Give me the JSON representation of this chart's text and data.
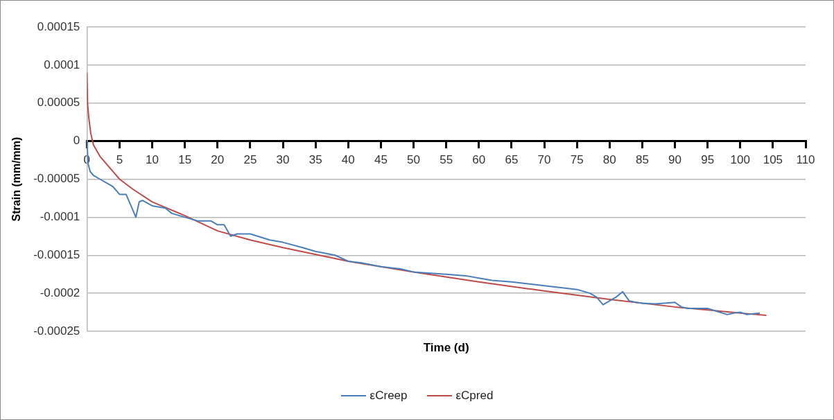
{
  "chart_data": {
    "type": "line",
    "xlabel": "Time (d)",
    "ylabel": "Strain (mm/mm)",
    "xlim": [
      0,
      110
    ],
    "xticks": [
      0,
      5,
      10,
      15,
      20,
      25,
      30,
      35,
      40,
      45,
      50,
      55,
      60,
      65,
      70,
      75,
      80,
      85,
      90,
      95,
      100,
      105,
      110
    ],
    "ylim": [
      -0.00025,
      0.00015
    ],
    "yticks": [
      {
        "value": -0.00025,
        "label": "-0.00025"
      },
      {
        "value": -0.0002,
        "label": "-0.0002"
      },
      {
        "value": -0.00015,
        "label": "-0.00015"
      },
      {
        "value": -0.0001,
        "label": "-0.0001"
      },
      {
        "value": -5e-05,
        "label": "-0.00005"
      },
      0,
      {
        "value": 5e-05,
        "label": "0.00005"
      },
      {
        "value": 0.0001,
        "label": "0.0001"
      },
      {
        "value": 0.00015,
        "label": "0.00015"
      }
    ],
    "grid": "y",
    "legend": "bottom",
    "marker": "none",
    "line_style": "solid",
    "series": [
      {
        "name": "εCreep",
        "color": "#4a7ebb",
        "x": [
          0,
          0.2,
          0.5,
          1,
          2,
          3,
          4,
          5,
          6,
          7,
          7.5,
          8,
          8.5,
          10,
          12,
          13,
          15,
          17,
          19,
          20,
          21,
          22,
          23,
          25,
          28,
          30,
          33,
          35,
          38,
          40,
          42,
          45,
          48,
          50,
          53,
          55,
          58,
          60,
          62,
          65,
          68,
          70,
          73,
          75,
          77,
          78,
          79,
          80,
          81,
          82,
          83,
          84,
          85,
          87,
          90,
          91,
          92,
          95,
          98,
          99,
          100,
          101,
          103
        ],
        "values": [
          0,
          -3e-05,
          -4e-05,
          -4.5e-05,
          -5e-05,
          -5.5e-05,
          -6e-05,
          -7e-05,
          -7e-05,
          -9e-05,
          -0.0001,
          -8e-05,
          -7.8e-05,
          -8.5e-05,
          -8.8e-05,
          -9.5e-05,
          -0.0001,
          -0.000105,
          -0.000105,
          -0.00011,
          -0.00011,
          -0.000125,
          -0.000122,
          -0.000122,
          -0.00013,
          -0.000133,
          -0.00014,
          -0.000145,
          -0.00015,
          -0.000158,
          -0.00016,
          -0.000165,
          -0.000168,
          -0.000172,
          -0.000174,
          -0.000175,
          -0.000177,
          -0.00018,
          -0.000183,
          -0.000185,
          -0.000188,
          -0.00019,
          -0.000193,
          -0.000195,
          -0.0002,
          -0.000205,
          -0.000215,
          -0.00021,
          -0.000205,
          -0.000198,
          -0.00021,
          -0.000212,
          -0.000213,
          -0.000214,
          -0.000212,
          -0.000218,
          -0.00022,
          -0.00022,
          -0.000228,
          -0.000226,
          -0.000225,
          -0.000228,
          -0.000226
        ]
      },
      {
        "name": "εCpred",
        "color": "#be4b48",
        "x": [
          0,
          0.1,
          0.3,
          0.6,
          1,
          2,
          3,
          5,
          7,
          10,
          15,
          20,
          25,
          30,
          40,
          50,
          60,
          70,
          80,
          90,
          100,
          104
        ],
        "values": [
          9e-05,
          5e-05,
          3e-05,
          1e-05,
          -5e-06,
          -2e-05,
          -3e-05,
          -5e-05,
          -6.3e-05,
          -8e-05,
          -9.8e-05,
          -0.000118,
          -0.00013,
          -0.00014,
          -0.000158,
          -0.000172,
          -0.000185,
          -0.000197,
          -0.000208,
          -0.000218,
          -0.000226,
          -0.000229
        ]
      }
    ]
  }
}
